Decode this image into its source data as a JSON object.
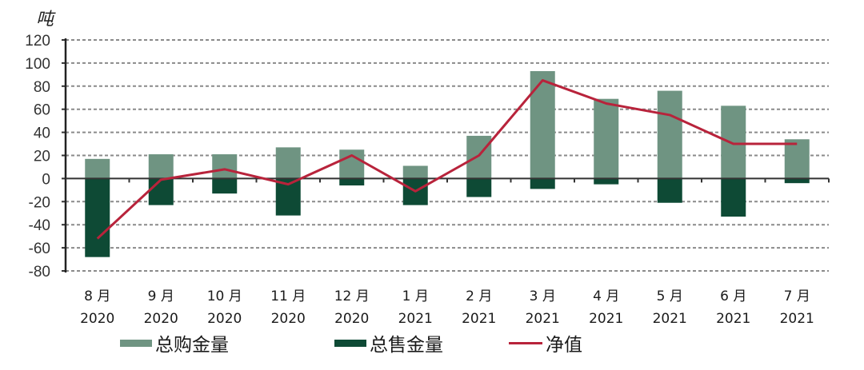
{
  "chart_data": {
    "type": "bar",
    "title": "",
    "unit_label": "吨",
    "xlabel": "",
    "ylabel": "吨",
    "ylim": [
      -80,
      120
    ],
    "yticks": [
      120,
      100,
      80,
      60,
      40,
      20,
      0,
      -20,
      -40,
      -60,
      -80
    ],
    "grid": true,
    "legend_position": "bottom",
    "categories": [
      {
        "month": "8 月",
        "year": "2020"
      },
      {
        "month": "9 月",
        "year": "2020"
      },
      {
        "month": "10 月",
        "year": "2020"
      },
      {
        "month": "11 月",
        "year": "2020"
      },
      {
        "month": "12 月",
        "year": "2020"
      },
      {
        "month": "1 月",
        "year": "2021"
      },
      {
        "month": "2 月",
        "year": "2021"
      },
      {
        "month": "3 月",
        "year": "2021"
      },
      {
        "month": "4 月",
        "year": "2021"
      },
      {
        "month": "5 月",
        "year": "2021"
      },
      {
        "month": "6 月",
        "year": "2021"
      },
      {
        "month": "7 月",
        "year": "2021"
      }
    ],
    "series": [
      {
        "name": "总购金量",
        "type": "bar",
        "color": "#6f9482",
        "values": [
          17,
          21,
          21,
          27,
          25,
          11,
          37,
          93,
          69,
          76,
          63,
          34
        ]
      },
      {
        "name": "总售金量",
        "type": "bar",
        "color": "#0e4a35",
        "values": [
          -68,
          -23,
          -13,
          -32,
          -6,
          -23,
          -16,
          -9,
          -5,
          -21,
          -33,
          -4
        ]
      },
      {
        "name": "净值",
        "type": "line",
        "color": "#b8233b",
        "values": [
          -52,
          -1,
          8,
          -5,
          20,
          -11,
          20,
          85,
          65,
          55,
          30,
          30
        ]
      }
    ]
  }
}
